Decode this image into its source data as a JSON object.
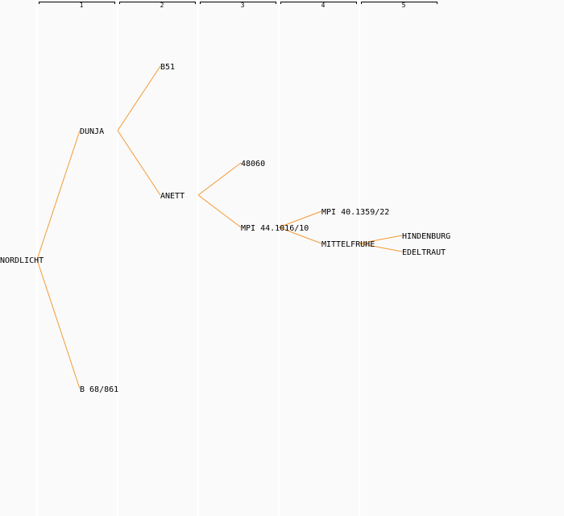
{
  "generations": [
    "1",
    "2",
    "3",
    "4",
    "5"
  ],
  "colors": {
    "background": "#fafafa",
    "column_separator": "#ffffff",
    "edge": "#f39a33",
    "text": "#000000"
  },
  "nodes": {
    "nordlicht": {
      "label": "NORDLICHT",
      "generation": 0
    },
    "dunja": {
      "label": "DUNJA",
      "generation": 1
    },
    "b68861": {
      "label": "B 68/861",
      "generation": 1
    },
    "b51": {
      "label": "B51",
      "generation": 2
    },
    "anett": {
      "label": "ANETT",
      "generation": 2
    },
    "n48060": {
      "label": "48060",
      "generation": 3
    },
    "mpi44": {
      "label": "MPI 44.1016/10",
      "generation": 3
    },
    "mpi40": {
      "label": "MPI 40.1359/22",
      "generation": 4
    },
    "mittelfruhe": {
      "label": "MITTELFRUHE",
      "generation": 4
    },
    "hindenburg": {
      "label": "HINDENBURG",
      "generation": 5
    },
    "edeltraut": {
      "label": "EDELTRAUT",
      "generation": 5
    }
  },
  "edges": [
    [
      "nordlicht",
      "dunja"
    ],
    [
      "nordlicht",
      "b68861"
    ],
    [
      "dunja",
      "b51"
    ],
    [
      "dunja",
      "anett"
    ],
    [
      "anett",
      "n48060"
    ],
    [
      "anett",
      "mpi44"
    ],
    [
      "mpi44",
      "mpi40"
    ],
    [
      "mpi44",
      "mittelfruhe"
    ],
    [
      "mittelfruhe",
      "hindenburg"
    ],
    [
      "mittelfruhe",
      "edeltraut"
    ]
  ]
}
